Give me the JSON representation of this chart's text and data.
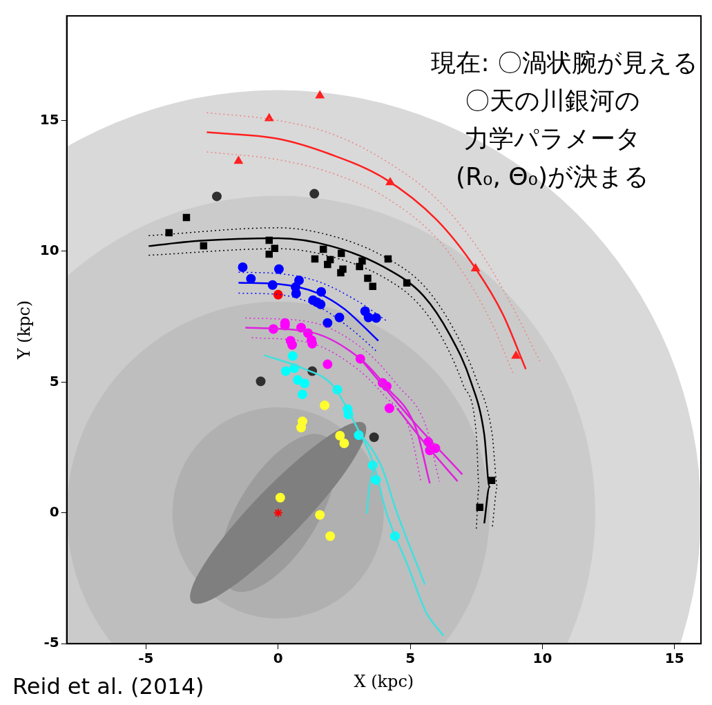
{
  "chart_data": {
    "type": "scatter",
    "xlabel": "X (kpc)",
    "ylabel": "Y (kpc)",
    "xlim": [
      -8,
      16
    ],
    "ylim": [
      -5,
      19
    ],
    "xticks": [
      -5,
      0,
      5,
      10,
      15
    ],
    "yticks": [
      -5,
      0,
      5,
      10,
      15
    ],
    "grid": false,
    "legend": false,
    "annotations": [
      "現在: 〇渦状腕が見える",
      "〇天の川銀河の",
      "力学パラメータ",
      "(R₀, Θ₀)が決まる",
      "Reid et al. (2014)"
    ],
    "series": [
      {
        "type": "line",
        "color": "#ff2020",
        "line_style": "solid",
        "x": [
          -2.7,
          0,
          2,
          4,
          6,
          7.5,
          8.5,
          9.37
        ],
        "values": [
          14.55,
          14.3,
          13.7,
          12.8,
          11.2,
          9.3,
          7.6,
          5.5
        ]
      },
      {
        "type": "line",
        "color": "#f08080",
        "line_style": "dotted",
        "x": [
          -2.7,
          0,
          2,
          4,
          6,
          7.5,
          8.7,
          9.9
        ],
        "values": [
          15.3,
          15.0,
          14.5,
          13.5,
          12,
          10.2,
          8.2,
          5.8
        ]
      },
      {
        "type": "line",
        "color": "#f08080",
        "line_style": "dotted",
        "x": [
          -2.7,
          0,
          2,
          4,
          6,
          7.3,
          8.2,
          8.9
        ],
        "values": [
          13.8,
          13.5,
          13.0,
          12.1,
          10.5,
          8.7,
          7.0,
          5.3
        ]
      },
      {
        "type": "line",
        "color": "#000000",
        "line_style": "solid",
        "x": [
          -4.9,
          -3,
          0,
          2,
          4,
          5.5,
          6.5,
          7.3,
          7.8,
          8,
          7.8
        ],
        "values": [
          10.2,
          10.4,
          10.5,
          10.2,
          9.4,
          8.3,
          6.8,
          5,
          3,
          1,
          -0.4
        ]
      },
      {
        "type": "line",
        "color": "#000000",
        "line_style": "dotted",
        "x": [
          -4.9,
          0,
          2,
          4,
          5.5,
          6.6,
          7.5,
          8.1,
          8.3,
          8.1
        ],
        "values": [
          10.6,
          10.9,
          10.6,
          9.8,
          8.7,
          7.1,
          5.1,
          3,
          1,
          -0.6
        ]
      },
      {
        "type": "line",
        "color": "#000000",
        "line_style": "dotted",
        "x": [
          -4.9,
          0,
          2,
          4,
          5.3,
          6.2,
          7,
          7.5,
          7.6,
          7.5
        ],
        "values": [
          9.85,
          10.1,
          9.8,
          9.0,
          8,
          6.7,
          4.9,
          3,
          1,
          -0.6
        ]
      },
      {
        "type": "line",
        "color": "#0000ff",
        "line_style": "solid",
        "x": [
          -1.5,
          0,
          1.5,
          2.5,
          3.79
        ],
        "values": [
          8.8,
          8.75,
          8.4,
          7.8,
          6.58
        ]
      },
      {
        "type": "line",
        "color": "#0000ff",
        "line_style": "dotted",
        "x": [
          -1.5,
          0,
          1.5,
          3,
          4.16
        ],
        "values": [
          9.2,
          9.15,
          8.85,
          8.1,
          7.3
        ]
      },
      {
        "type": "line",
        "color": "#0000ff",
        "line_style": "dotted",
        "x": [
          -1.5,
          0,
          1.5,
          2.8,
          3.7
        ],
        "values": [
          8.4,
          8.35,
          7.9,
          7.0,
          6.2
        ]
      },
      {
        "type": "line",
        "color": "#e020e0",
        "line_style": "solid",
        "x": [
          -1.24,
          1.18,
          3.11,
          4.11,
          5.21,
          5.74
        ],
        "values": [
          7.08,
          6.92,
          5.89,
          4.8,
          3.24,
          1.13
        ]
      },
      {
        "type": "line",
        "color": "#e020e0",
        "line_style": "solid",
        "x": [
          3.11,
          5.2,
          6.97
        ],
        "values": [
          5.89,
          3.4,
          1.47
        ]
      },
      {
        "type": "line",
        "color": "#e020e0",
        "line_style": "solid",
        "x": [
          4.5,
          5.6,
          6.79
        ],
        "values": [
          4.0,
          2.6,
          1.21
        ]
      },
      {
        "type": "line",
        "color": "#e020e0",
        "line_style": "dotted",
        "x": [
          -1.24,
          1.2,
          3.3,
          4.5,
          5.6,
          6.1
        ],
        "values": [
          7.45,
          7.3,
          6.2,
          4.9,
          3.3,
          1.2
        ]
      },
      {
        "type": "line",
        "color": "#e020e0",
        "line_style": "dotted",
        "x": [
          -1.0,
          1.2,
          3,
          4,
          5,
          5.4
        ],
        "values": [
          6.7,
          6.5,
          5.5,
          4.5,
          3.1,
          1.2
        ]
      },
      {
        "type": "line",
        "color": "#40e0e0",
        "line_style": "solid",
        "x": [
          -0.53,
          1,
          2.05,
          2.92,
          3.63,
          4.1,
          4.9,
          5.6,
          6.26
        ],
        "values": [
          6.03,
          5.5,
          4.89,
          3.39,
          1.82,
          0,
          -2,
          -3.8,
          -4.7
        ]
      },
      {
        "type": "line",
        "color": "#40e0e0",
        "line_style": "solid",
        "x": [
          3.63,
          3.4,
          3.37
        ],
        "values": [
          1.82,
          0.5,
          -0.03
        ]
      },
      {
        "type": "line",
        "color": "#40e0e0",
        "line_style": "solid",
        "x": [
          3.0,
          3.9,
          4.5,
          5.55
        ],
        "values": [
          3.2,
          1.8,
          0,
          -2.74
        ]
      },
      {
        "type": "scatter",
        "color": "#ff2020",
        "marker": "triangle",
        "x": [
          -0.34,
          1.58,
          -1.5,
          4.24,
          7.47,
          9.0
        ],
        "values": [
          15.08,
          15.95,
          13.45,
          12.63,
          9.34,
          6.0
        ]
      },
      {
        "type": "scatter",
        "color": "#000000",
        "marker": "square",
        "x": [
          -3.47,
          -4.13,
          -2.82,
          -0.34,
          -0.13,
          -0.34,
          1.71,
          1.39,
          1.97,
          1.87,
          2.39,
          2.45,
          2.37,
          3.18,
          3.08,
          3.39,
          3.58,
          4.16,
          4.87,
          8.08,
          7.63
        ],
        "values": [
          11.29,
          10.71,
          10.21,
          10.42,
          10.11,
          9.89,
          10.08,
          9.71,
          9.68,
          9.5,
          9.92,
          9.32,
          9.18,
          9.63,
          9.42,
          8.97,
          8.66,
          9.71,
          8.79,
          1.24,
          0.21
        ]
      },
      {
        "type": "scatter",
        "color": "#0000ff",
        "marker": "circle",
        "x": [
          -1.34,
          0.03,
          -1.03,
          -0.21,
          0.79,
          0.66,
          0.68,
          1.63,
          1.32,
          1.47,
          1.61,
          3.29,
          3.42,
          3.71,
          2.32,
          1.87
        ],
        "values": [
          9.39,
          9.32,
          8.95,
          8.71,
          8.89,
          8.63,
          8.39,
          8.45,
          8.13,
          8.05,
          7.97,
          7.71,
          7.47,
          7.45,
          7.47,
          7.26
        ]
      },
      {
        "type": "scatter",
        "color": "#ff00ff",
        "marker": "circle",
        "x": [
          -0.18,
          0.26,
          0.26,
          0.87,
          1.13,
          1.26,
          0.47,
          0.53,
          1.29,
          3.11,
          1.87,
          3.95,
          4.11,
          4.21,
          5.68,
          5.95,
          5.74
        ],
        "values": [
          7.03,
          7.26,
          7.16,
          7.08,
          6.87,
          6.61,
          6.58,
          6.42,
          6.47,
          5.89,
          5.68,
          4.97,
          4.84,
          4.0,
          2.71,
          2.47,
          2.39
        ]
      },
      {
        "type": "scatter",
        "color": "#00ffff",
        "marker": "circle",
        "x": [
          0.55,
          0.61,
          0.29,
          0.74,
          1.0,
          0.92,
          2.24,
          2.63,
          2.66,
          3.05,
          3.58,
          3.71,
          4.42
        ],
        "values": [
          6.0,
          5.53,
          5.42,
          5.08,
          4.95,
          4.53,
          4.71,
          3.97,
          3.76,
          2.97,
          1.82,
          1.26,
          -0.89
        ]
      },
      {
        "type": "scatter",
        "color": "#ffff30",
        "marker": "circle",
        "x": [
          1.76,
          0.92,
          0.87,
          2.34,
          2.5,
          0.08,
          1.58,
          1.97
        ],
        "values": [
          4.11,
          3.5,
          3.26,
          2.95,
          2.66,
          0.58,
          -0.08,
          -0.89
        ]
      },
      {
        "type": "scatter",
        "color": "#303030",
        "marker": "circle",
        "x": [
          -2.32,
          1.37,
          -0.66,
          1.29,
          3.63
        ],
        "values": [
          12.1,
          12.2,
          5.03,
          5.42,
          2.89
        ]
      },
      {
        "type": "scatter",
        "color": "#ff0000",
        "marker": "circle",
        "x": [
          0
        ],
        "values": [
          8.34
        ]
      },
      {
        "type": "scatter",
        "color": "#ff0000",
        "marker": "cross",
        "x": [
          0
        ],
        "values": [
          0
        ]
      }
    ]
  }
}
